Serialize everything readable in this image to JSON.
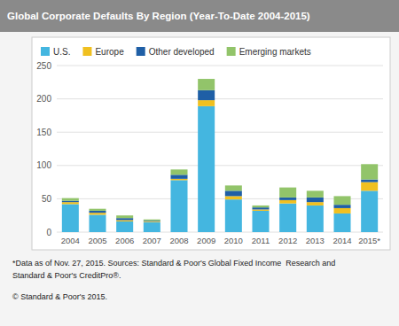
{
  "chart_data": {
    "type": "bar",
    "stacked": true,
    "title": "Global Corporate Defaults By Region (Year-To-Date 2004-2015)",
    "categories": [
      "2004",
      "2005",
      "2006",
      "2007",
      "2008",
      "2009",
      "2010",
      "2011",
      "2012",
      "2013",
      "2014",
      "2015*"
    ],
    "series": [
      {
        "name": "U.S.",
        "color": "#44b6e0",
        "values": [
          42,
          26,
          16,
          15,
          78,
          189,
          49,
          32,
          43,
          40,
          28,
          62
        ]
      },
      {
        "name": "Europe",
        "color": "#f0c020",
        "values": [
          3,
          3,
          2,
          1,
          2,
          9,
          5,
          2,
          5,
          5,
          8,
          13
        ]
      },
      {
        "name": "Other developed",
        "color": "#1f5fa6",
        "values": [
          2,
          3,
          3,
          1,
          6,
          15,
          8,
          3,
          4,
          7,
          5,
          4
        ]
      },
      {
        "name": "Emerging markets",
        "color": "#92c46a",
        "values": [
          4,
          3,
          4,
          2,
          8,
          17,
          8,
          3,
          15,
          10,
          13,
          23
        ]
      }
    ],
    "ylim": [
      0,
      250
    ],
    "yticks": [
      0,
      50,
      100,
      150,
      200,
      250
    ],
    "grid": true,
    "legend": "top",
    "annotations": [
      "*Data as of Nov. 27, 2015. Sources: Standard & Poor's Global Fixed Income  Research and",
      "Standard & Poor's CreditPro®.",
      "© Standard & Poor's 2015."
    ]
  }
}
